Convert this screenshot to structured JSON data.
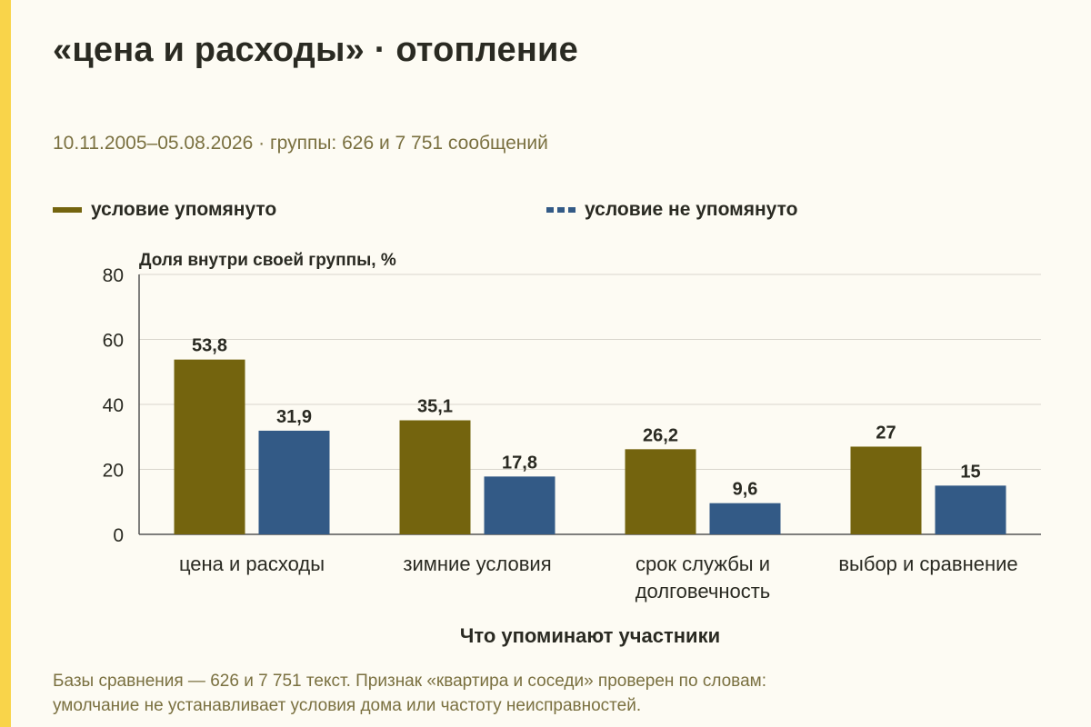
{
  "title": "«цена и расходы» · отопление",
  "subtitle": "10.11.2005–05.08.2026 · группы: 626 и 7 751 сообщений",
  "footnote": {
    "line1": "Базы сравнения — 626 и 7 751 текст. Признак «квартира и соседи» проверен по словам:",
    "line2": "умолчание не устанавливает условия дома или частоту неисправностей."
  },
  "colors": {
    "mentioned": "#74640e",
    "not_mentioned": "#335a86",
    "accent": "#f9d44a",
    "grid": "#d9d6cc",
    "axis": "#555555"
  },
  "chart_data": {
    "type": "bar",
    "title": "",
    "ylabel": "Доля внутри своей группы, %",
    "xlabel": "Что упоминают участники",
    "ylim": [
      0,
      80
    ],
    "yticks": [
      0,
      20,
      40,
      60,
      80
    ],
    "grid": true,
    "legend_placement": "top",
    "categories": [
      [
        "цена и расходы"
      ],
      [
        "зимние условия"
      ],
      [
        "срок службы и",
        "долговечность"
      ],
      [
        "выбор и сравнение"
      ]
    ],
    "series": [
      {
        "name": "условие упомянуто",
        "values": [
          53.8,
          35.1,
          26.2,
          27
        ],
        "labels": [
          "53,8",
          "35,1",
          "26,2",
          "27"
        ],
        "color": "#74640e",
        "legend_style": "solid"
      },
      {
        "name": "условие не упомянуто",
        "values": [
          31.9,
          17.8,
          9.6,
          15
        ],
        "labels": [
          "31,9",
          "17,8",
          "9,6",
          "15"
        ],
        "color": "#335a86",
        "legend_style": "dashed"
      }
    ]
  }
}
